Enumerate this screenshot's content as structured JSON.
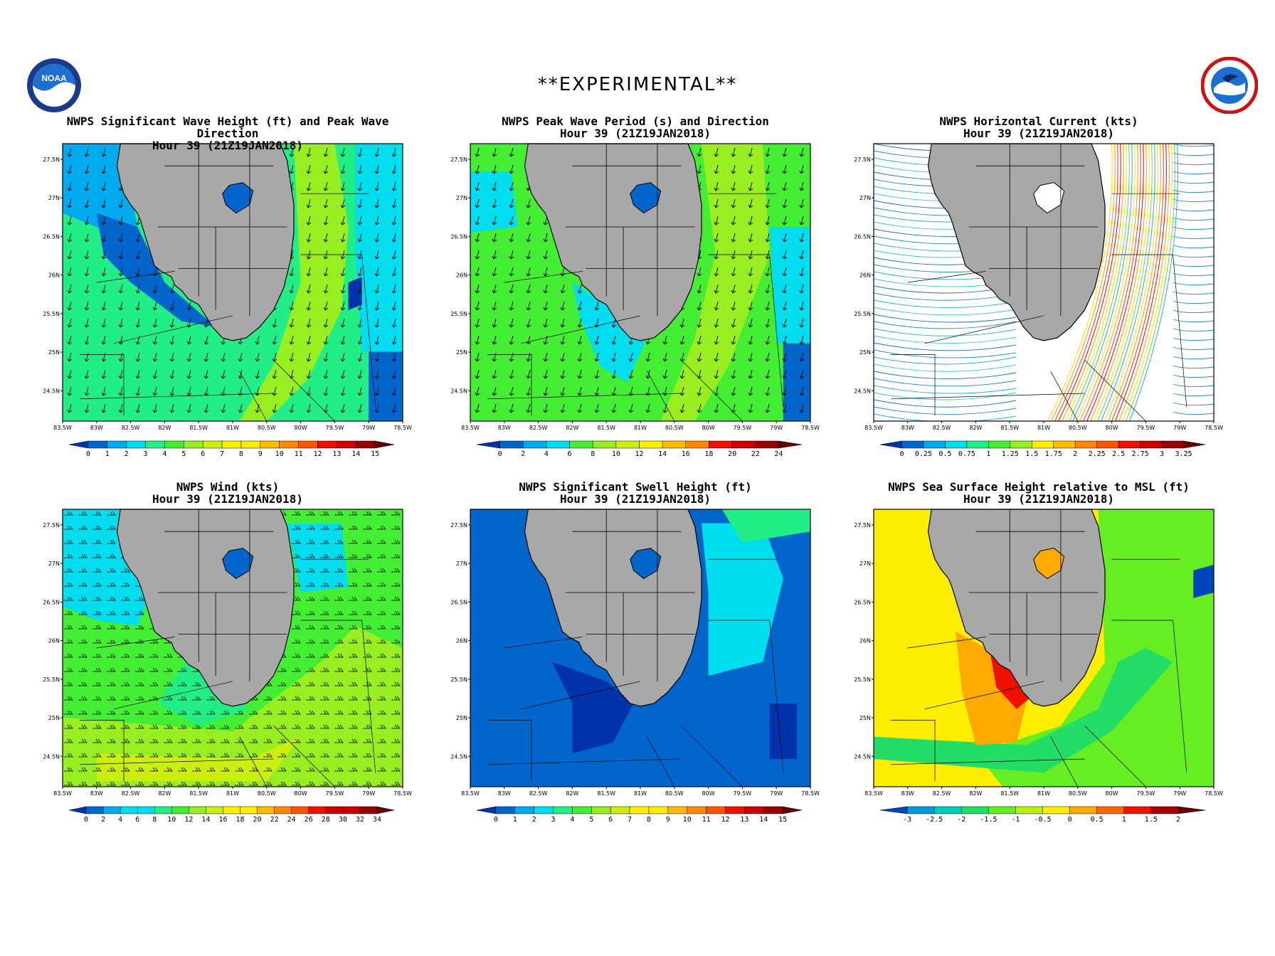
{
  "banner": "**EXPERIMENTAL**",
  "logos": {
    "left": "NOAA",
    "right": "NATIONAL WEATHER SERVICE"
  },
  "axes": {
    "x_ticks": [
      "83.5W",
      "83W",
      "82.5W",
      "82W",
      "81.5W",
      "81W",
      "80.5W",
      "80W",
      "79.5W",
      "79W",
      "78.5W"
    ],
    "y_ticks": [
      "27.5N",
      "27N",
      "26.5N",
      "26N",
      "25.5N",
      "25N",
      "24.5N"
    ]
  },
  "panels": [
    {
      "title_line1": "NWPS Significant Wave Height (ft) and Peak Wave Direction",
      "title_line2": "Hour 39 (21Z19JAN2018)",
      "overlay": "arrows",
      "scale": [
        "0",
        "1",
        "2",
        "3",
        "4",
        "5",
        "6",
        "7",
        "8",
        "9",
        "10",
        "11",
        "12",
        "13",
        "14",
        "15"
      ]
    },
    {
      "title_line1": "NWPS Peak Wave Period (s) and Direction",
      "title_line2": "Hour 39 (21Z19JAN2018)",
      "overlay": "arrows",
      "scale": [
        "0",
        "2",
        "4",
        "6",
        "8",
        "10",
        "12",
        "14",
        "16",
        "18",
        "20",
        "22",
        "24"
      ]
    },
    {
      "title_line1": "NWPS Horizontal Current (kts)",
      "title_line2": "Hour 39 (21Z19JAN2018)",
      "overlay": "streamlines",
      "scale": [
        "0",
        "0.25",
        "0.5",
        "0.75",
        "1",
        "1.25",
        "1.5",
        "1.75",
        "2",
        "2.25",
        "2.5",
        "2.75",
        "3",
        "3.25"
      ]
    },
    {
      "title_line1": "NWPS Wind (kts)",
      "title_line2": "Hour 39 (21Z19JAN2018)",
      "overlay": "barbs",
      "scale": [
        "0",
        "2",
        "4",
        "6",
        "8",
        "10",
        "12",
        "14",
        "16",
        "18",
        "20",
        "22",
        "24",
        "26",
        "28",
        "30",
        "32",
        "34"
      ]
    },
    {
      "title_line1": "NWPS Significant Swell Height (ft)",
      "title_line2": "Hour 39 (21Z19JAN2018)",
      "overlay": "none",
      "scale": [
        "0",
        "1",
        "2",
        "3",
        "4",
        "5",
        "6",
        "7",
        "8",
        "9",
        "10",
        "11",
        "12",
        "13",
        "14",
        "15"
      ]
    },
    {
      "title_line1": "NWPS Sea Surface Height relative to MSL (ft)",
      "title_line2": "Hour 39 (21Z19JAN2018)",
      "overlay": "none",
      "scale": [
        "-3",
        "-2.5",
        "-2",
        "-1.5",
        "-1",
        "-0.5",
        "0",
        "0.5",
        "1",
        "1.5",
        "2"
      ]
    }
  ],
  "colors": {
    "land": "#a8a8a8",
    "wave_palette": [
      "#0033aa",
      "#0066cc",
      "#00aaee",
      "#00ddee",
      "#22ee88",
      "#44ee33",
      "#99ee22",
      "#ccee11",
      "#ffee00",
      "#ffbb00",
      "#ff8800",
      "#ff5500",
      "#ee1100",
      "#cc0000",
      "#990000",
      "#660000"
    ],
    "ssh_palette": [
      "#0044bb",
      "#0099dd",
      "#00ccbb",
      "#22dd66",
      "#66ee22",
      "#bbee11",
      "#ffee00",
      "#ffaa00",
      "#ff6600",
      "#ee1100",
      "#aa0000",
      "#660000"
    ]
  }
}
